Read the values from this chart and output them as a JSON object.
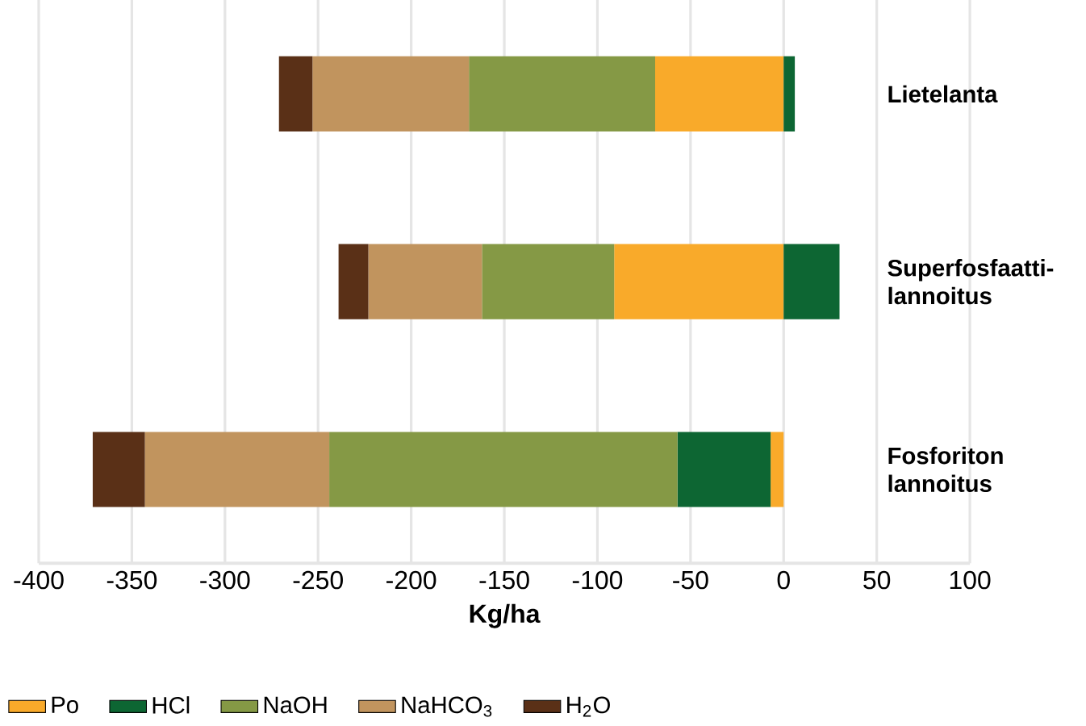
{
  "chart_data": {
    "type": "bar",
    "orientation": "horizontal",
    "stacked": true,
    "categories": [
      "Lietelanta",
      "Superfosfaatti-lannoitus",
      "Fosforiton lannoitus"
    ],
    "series": [
      {
        "name": "Po",
        "color": "#f9aa2a",
        "values": [
          -69,
          -91,
          -7
        ]
      },
      {
        "name": "HCl",
        "color": "#0d6633",
        "values": [
          6,
          30,
          -50
        ]
      },
      {
        "name": "NaOH",
        "color": "#859945",
        "values": [
          -100,
          -71,
          -187
        ]
      },
      {
        "name": "NaHCO$_{3}$",
        "color": "#c1945e",
        "values": [
          -84,
          -61,
          -99
        ]
      },
      {
        "name": "H$_{2}$O",
        "color": "#5a3017",
        "values": [
          -18,
          -16,
          -28
        ]
      }
    ],
    "xlim": [
      -400,
      100
    ],
    "xticks": [
      -400,
      -350,
      -300,
      -250,
      -200,
      -150,
      -100,
      -50,
      0,
      50,
      100
    ],
    "xlabel": "Kg/ha",
    "grid": "x",
    "legend": "bottom"
  }
}
